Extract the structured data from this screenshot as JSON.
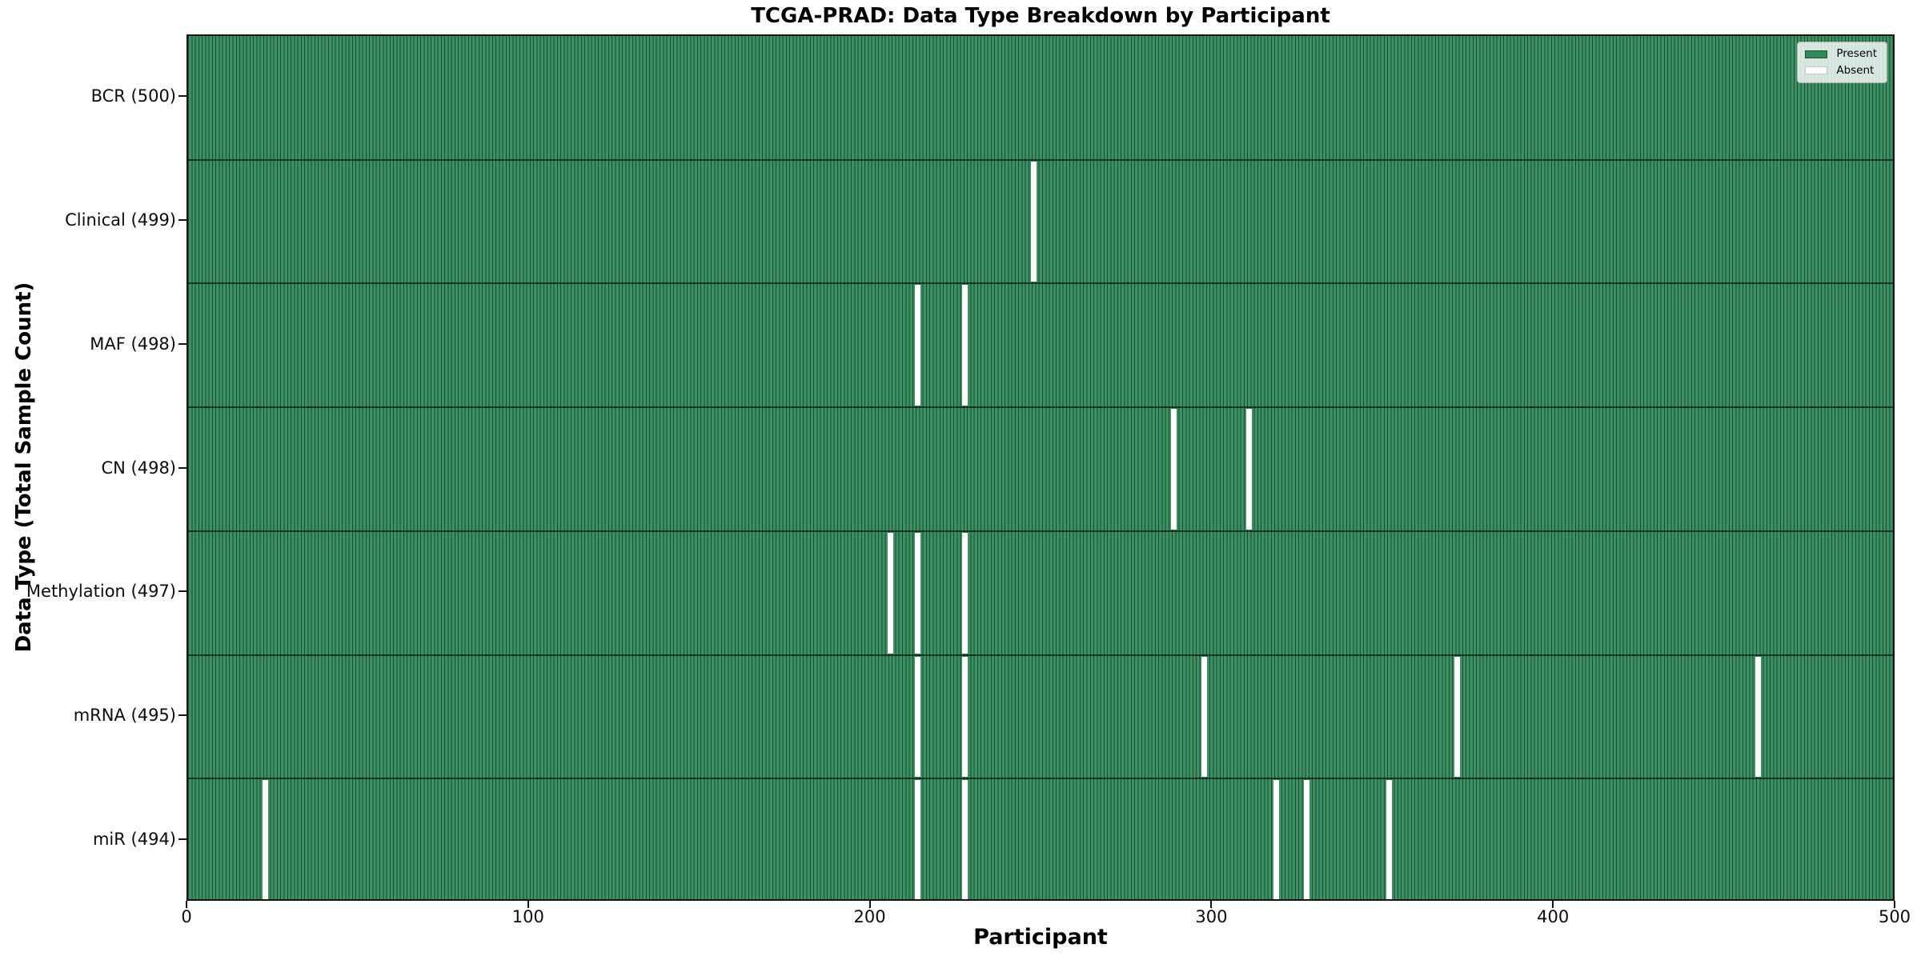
{
  "title": "TCGA-PRAD: Data Type Breakdown by Participant",
  "chart_data": {
    "type": "heatmap",
    "title": "TCGA-PRAD: Data Type Breakdown by Participant",
    "xlabel": "Participant",
    "ylabel": "Data Type (Total Sample Count)",
    "x_range": [
      0,
      500
    ],
    "x_ticks": [
      0,
      100,
      200,
      300,
      400,
      500
    ],
    "n_participants": 500,
    "grid": false,
    "legend_position": "upper right",
    "legend": [
      {
        "label": "Present",
        "color": "#2E8B57"
      },
      {
        "label": "Absent",
        "color": "#FFFFFF"
      }
    ],
    "rows": [
      {
        "label": "BCR (500)",
        "data_type": "BCR",
        "present_count": 500,
        "absent_participants": []
      },
      {
        "label": "Clinical (499)",
        "data_type": "Clinical",
        "present_count": 499,
        "absent_participants": [
          247
        ]
      },
      {
        "label": "MAF (498)",
        "data_type": "MAF",
        "present_count": 498,
        "absent_participants": [
          213,
          227
        ]
      },
      {
        "label": "CN (498)",
        "data_type": "CN",
        "present_count": 498,
        "absent_participants": [
          288,
          310
        ]
      },
      {
        "label": "Methylation (497)",
        "data_type": "Methylation",
        "present_count": 497,
        "absent_participants": [
          205,
          213,
          227
        ]
      },
      {
        "label": "mRNA (495)",
        "data_type": "mRNA",
        "present_count": 495,
        "absent_participants": [
          213,
          227,
          297,
          371,
          459
        ]
      },
      {
        "label": "miR (494)",
        "data_type": "miR",
        "present_count": 494,
        "absent_participants": [
          22,
          213,
          227,
          318,
          327,
          351
        ]
      }
    ],
    "colors": {
      "present_fill": "#3C9263",
      "present_edge": "#1B4A2F",
      "absent_fill": "#FFFFFF"
    }
  }
}
